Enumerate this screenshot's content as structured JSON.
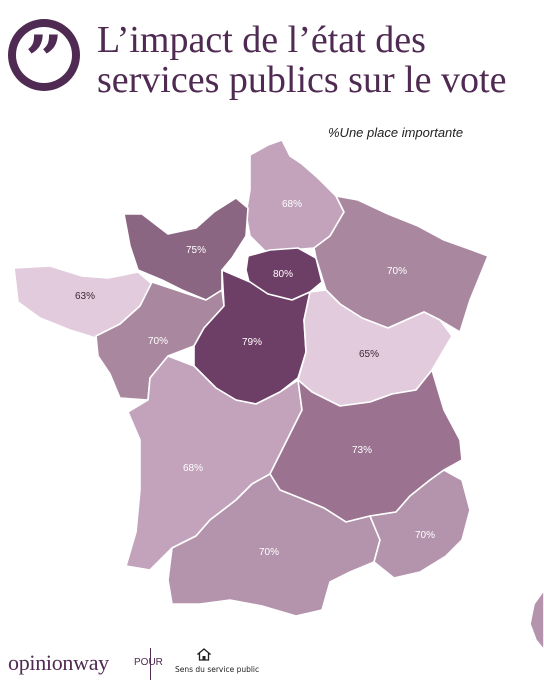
{
  "header": {
    "title_line1": "L’impact de l’état des",
    "title_line2": "services publics sur le vote",
    "quote_icon": "quote-mark-icon",
    "subtitle": "%Une place importante"
  },
  "map": {
    "colors": {
      "brand": "#4f2a52",
      "shade_lightest": "#e2cbdc",
      "shade_light": "#c2a3bb",
      "shade_mid": "#b494ad",
      "shade_midplus": "#a9889f",
      "shade_dark": "#9b7391",
      "shade_darker": "#8b6682",
      "shade_darkest": "#6e3f66"
    },
    "regions": [
      {
        "label": "68%",
        "value": 68
      },
      {
        "label": "75%",
        "value": 75
      },
      {
        "label": "80%",
        "value": 80
      },
      {
        "label": "70%",
        "value": 70
      },
      {
        "label": "63%",
        "value": 63
      },
      {
        "label": "70%",
        "value": 70
      },
      {
        "label": "79%",
        "value": 79
      },
      {
        "label": "65%",
        "value": 65
      },
      {
        "label": "68%",
        "value": 68
      },
      {
        "label": "73%",
        "value": 73
      },
      {
        "label": "70%",
        "value": 70
      },
      {
        "label": "70%",
        "value": 70
      }
    ]
  },
  "footer": {
    "logo_text": "opinionway",
    "pour_label": "POUR",
    "partner_name": "Sens du service public",
    "partner_icon": "house-icon"
  }
}
